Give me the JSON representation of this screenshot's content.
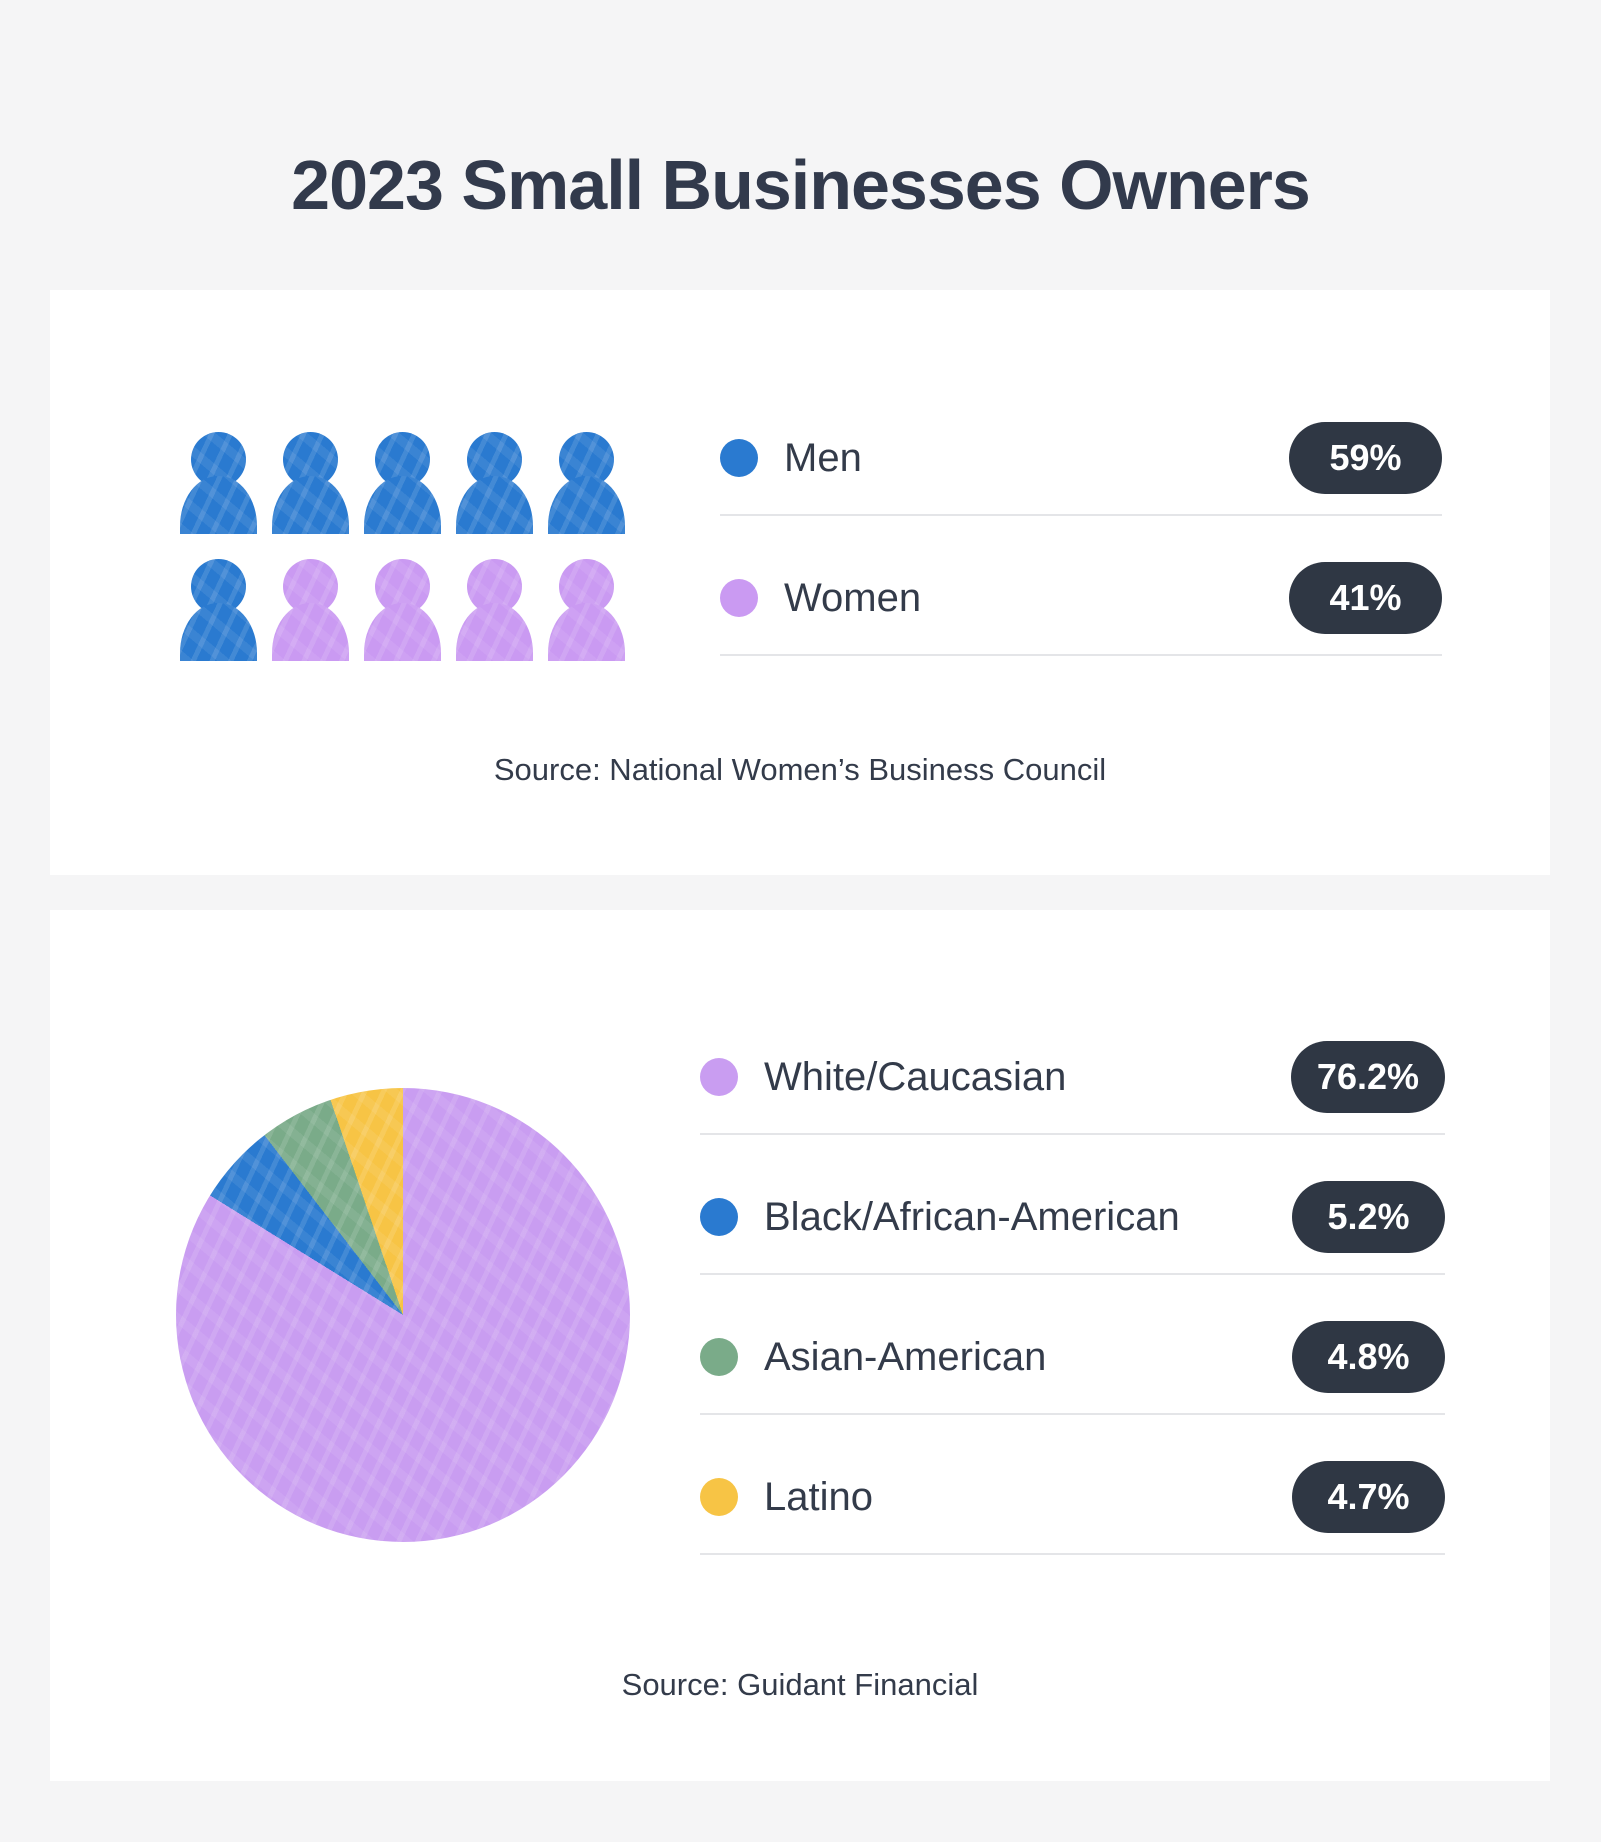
{
  "page": {
    "title": "2023 Small Businesses Owners",
    "background_color": "#f5f5f6",
    "card_color": "#ffffff",
    "text_color": "#333b4a",
    "pill_bg_color": "#2f3744",
    "pill_text_color": "#ffffff",
    "divider_color": "#e4e5e8"
  },
  "gender_card": {
    "pictogram": {
      "total_icons": 10,
      "icons_per_row": 5,
      "men_icons": 6,
      "women_icons": 4
    },
    "legend": [
      {
        "label": "Men",
        "value": "59%",
        "color": "#2a7ad0"
      },
      {
        "label": "Women",
        "value": "41%",
        "color": "#ca9af2"
      }
    ],
    "source": "Source: National Women’s Business Council"
  },
  "ethnicity_card": {
    "legend": [
      {
        "label": "White/Caucasian",
        "value": "76.2%",
        "color": "#c99df1"
      },
      {
        "label": "Black/African-American",
        "value": "5.2%",
        "color": "#2a7ad0"
      },
      {
        "label": "Asian-American",
        "value": "4.8%",
        "color": "#7aab89"
      },
      {
        "label": "Latino",
        "value": "4.7%",
        "color": "#f7c445"
      }
    ],
    "source": "Source: Guidant Financial"
  },
  "chart_data": [
    {
      "type": "pictogram",
      "title": "Small business owners by gender",
      "categories": [
        "Men",
        "Women"
      ],
      "values": [
        59,
        41
      ],
      "unit": "%",
      "icon_counts": [
        6,
        4
      ],
      "total_icons": 10,
      "legend_position": "right",
      "colors": [
        "#2a7ad0",
        "#ca9af2"
      ],
      "source": "Source: National Women’s Business Council"
    },
    {
      "type": "pie",
      "title": "Small business owners by ethnicity",
      "categories": [
        "White/Caucasian",
        "Black/African-American",
        "Asian-American",
        "Latino"
      ],
      "values": [
        76.2,
        5.2,
        4.8,
        4.7
      ],
      "unit": "%",
      "start_angle_deg": 0,
      "direction": "clockwise",
      "legend_position": "right",
      "colors": [
        "#c99df1",
        "#2a7ad0",
        "#7aab89",
        "#f7c445"
      ],
      "source": "Source: Guidant Financial"
    }
  ]
}
